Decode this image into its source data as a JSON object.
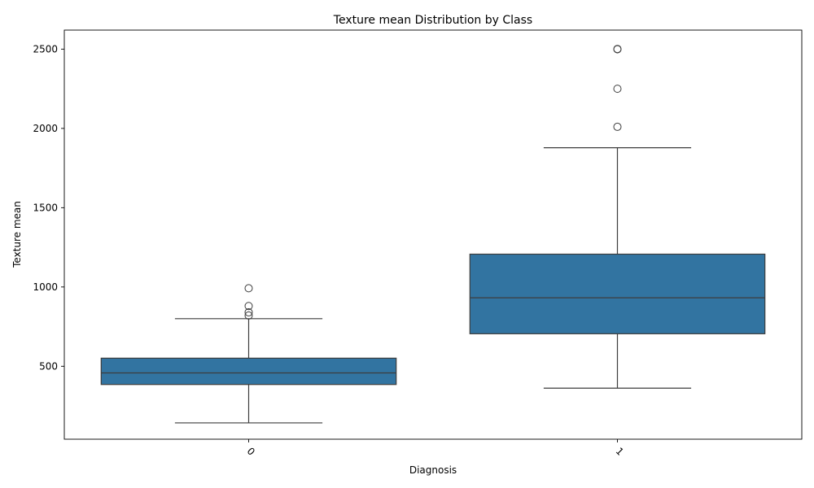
{
  "chart_data": {
    "type": "box",
    "title": "Texture mean Distribution by Class",
    "xlabel": "Diagnosis",
    "ylabel": "Texture mean",
    "categories": [
      "0",
      "1"
    ],
    "ylim": [
      40,
      2620
    ],
    "yticks": [
      500,
      1000,
      1500,
      2000,
      2500
    ],
    "box_color": "#3274a1",
    "line_color": "#3d3d3d",
    "grid": false,
    "boxes": [
      {
        "category": "0",
        "whisker_low": 143,
        "q1": 385,
        "median": 458,
        "q3": 551,
        "whisker_high": 800,
        "outliers": [
          992,
          880,
          840,
          820
        ]
      },
      {
        "category": "1",
        "whisker_low": 362,
        "q1": 705,
        "median": 932,
        "q3": 1207,
        "whisker_high": 1878,
        "outliers": [
          2501,
          2499,
          2250,
          2010
        ]
      }
    ]
  }
}
